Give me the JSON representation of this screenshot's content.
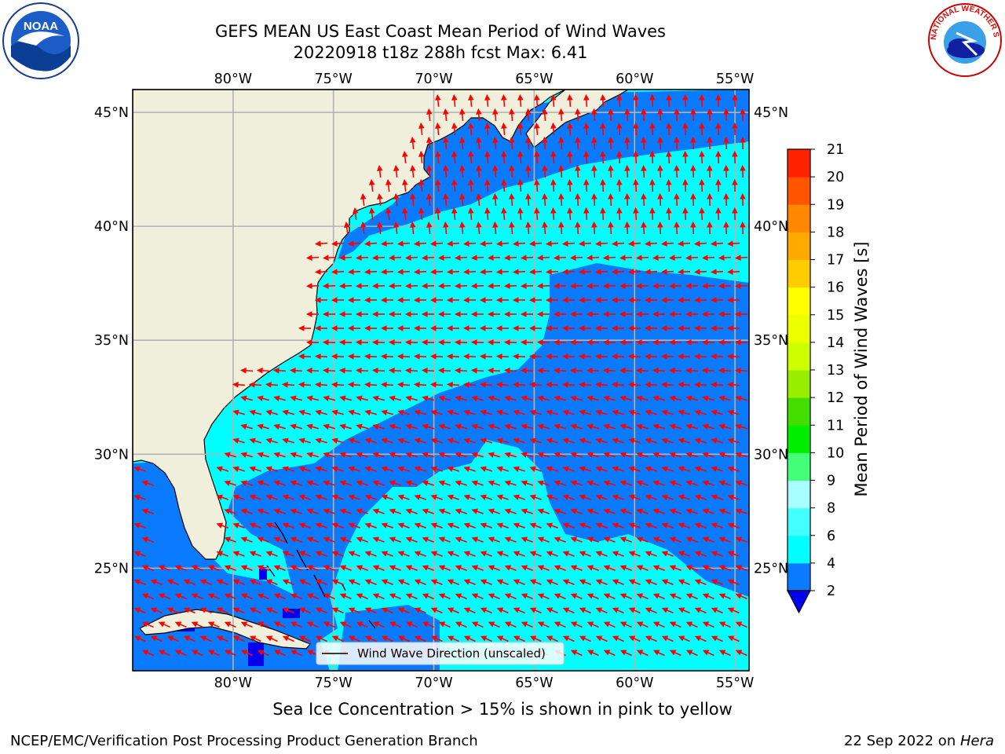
{
  "title": {
    "line1": "GEFS MEAN US East Coast Mean Period of Wind Waves",
    "line2": "20220918 t18z 288h fcst   Max: 6.41"
  },
  "map": {
    "lon_ticks": [
      "80°W",
      "75°W",
      "70°W",
      "65°W",
      "60°W",
      "55°W"
    ],
    "lat_ticks": [
      "45°N",
      "40°N",
      "35°N",
      "30°N",
      "25°N"
    ],
    "lon_range": [
      -85,
      -54.3
    ],
    "lat_range": [
      20.5,
      46
    ],
    "legend_label": "Wind Wave Direction (unscaled)",
    "land_color": "#efefdc",
    "ocean_colors": {
      "2-4": "#0a7bff",
      "4-6": "#00ffff",
      "below_2": "#0000ee"
    }
  },
  "colorbar": {
    "title": "Mean Period of Wind Waves [s]",
    "ticks": [
      "2",
      "4",
      "6",
      "8",
      "9",
      "10",
      "11",
      "12",
      "13",
      "14",
      "15",
      "16",
      "17",
      "18",
      "19",
      "20",
      "21"
    ],
    "colors": [
      "#0a7bff",
      "#00ffff",
      "#44ffff",
      "#a8ffff",
      "#44ff77",
      "#00ee00",
      "#44dd00",
      "#99ee00",
      "#ccff00",
      "#eeff00",
      "#ffff00",
      "#ffcc00",
      "#ffaa00",
      "#ff8800",
      "#ff5500",
      "#ff2200",
      "#ff0000"
    ],
    "under_color": "#0000ee"
  },
  "logos": {
    "noaa": "NOAA",
    "nws_text": "NATIONAL WEATHER SERVICE"
  },
  "footer": {
    "note": "Sea Ice Concentration > 15% is shown in pink to yellow",
    "left": "NCEP/EMC/Verification Post Processing Product Generation Branch",
    "right_date": "22 Sep 2022 on ",
    "right_host": "Hera"
  }
}
